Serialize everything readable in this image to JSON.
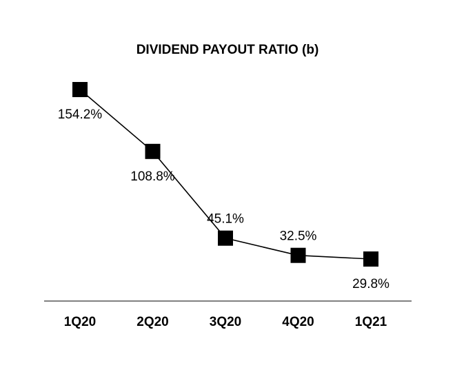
{
  "chart_data": {
    "type": "line",
    "title": "DIVIDEND PAYOUT RATIO (b)",
    "xlabel": "",
    "ylabel": "",
    "categories": [
      "1Q20",
      "2Q20",
      "3Q20",
      "4Q20",
      "1Q21"
    ],
    "series": [
      {
        "values": [
          154.2,
          108.8,
          45.1,
          32.5,
          29.8
        ],
        "labels": [
          "154.2%",
          "108.8%",
          "45.1%",
          "32.5%",
          "29.8%"
        ],
        "color": "#000000",
        "marker": "square"
      }
    ],
    "label_positions": [
      "below",
      "below",
      "above",
      "above",
      "below"
    ],
    "ylim": [
      -30,
      170
    ],
    "grid": false,
    "legend": "none",
    "axis_color": "#808080"
  }
}
